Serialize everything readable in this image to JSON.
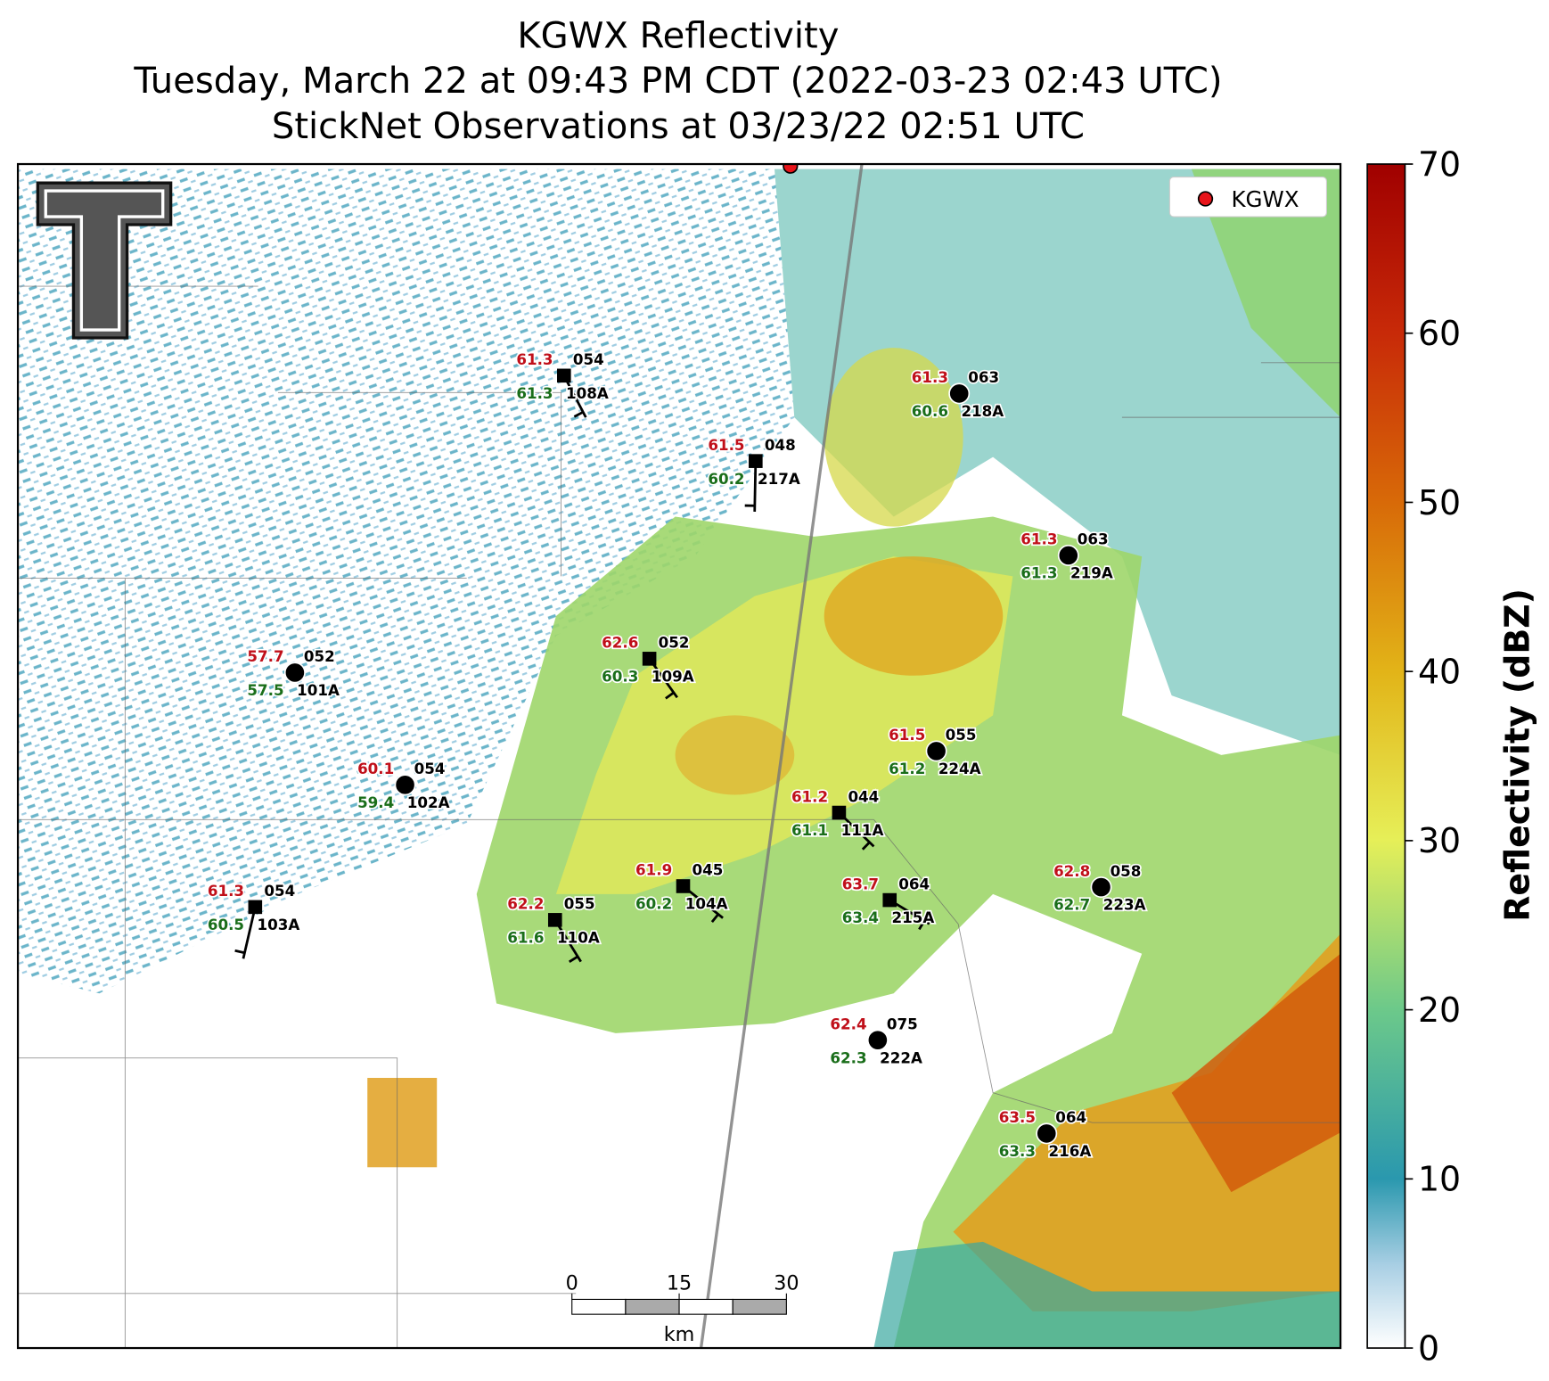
{
  "title": [
    "KGWX Reflectivity",
    "Tuesday, March 22 at 09:43 PM CDT (2022-03-23 02:43 UTC)",
    "StickNet Observations at 03/23/22 02:51 UTC"
  ],
  "legend": {
    "label": "KGWX"
  },
  "colorbar": {
    "label": "Reflectivity (dBZ)",
    "lim": [
      0,
      70
    ],
    "ticks": [
      0,
      10,
      20,
      30,
      40,
      50,
      60,
      70
    ]
  },
  "scale_bar": {
    "ticks": [
      0,
      15,
      30
    ],
    "unit": "km"
  },
  "stations": [
    {
      "id": "108A",
      "temperature": 61.3,
      "dewpoint": 61.3,
      "code": "054"
    },
    {
      "id": "217A",
      "temperature": 61.5,
      "dewpoint": 60.2,
      "code": "048"
    },
    {
      "id": "218A",
      "temperature": 61.3,
      "dewpoint": 60.6,
      "code": "063"
    },
    {
      "id": "219A",
      "temperature": 61.3,
      "dewpoint": 61.3,
      "code": "063"
    },
    {
      "id": "109A",
      "temperature": 62.6,
      "dewpoint": 60.3,
      "code": "052"
    },
    {
      "id": "101A",
      "temperature": 57.7,
      "dewpoint": 57.5,
      "code": "052"
    },
    {
      "id": "224A",
      "temperature": 61.5,
      "dewpoint": 61.2,
      "code": "055"
    },
    {
      "id": "102A",
      "temperature": 60.1,
      "dewpoint": 59.4,
      "code": "054"
    },
    {
      "id": "111A",
      "temperature": 61.2,
      "dewpoint": 61.1,
      "code": "044"
    },
    {
      "id": "104A",
      "temperature": 61.9,
      "dewpoint": 60.2,
      "code": "045"
    },
    {
      "id": "223A",
      "temperature": 62.8,
      "dewpoint": 62.7,
      "code": "058"
    },
    {
      "id": "215A",
      "temperature": 63.7,
      "dewpoint": 63.4,
      "code": "064"
    },
    {
      "id": "103A",
      "temperature": 61.3,
      "dewpoint": 60.5,
      "code": "054"
    },
    {
      "id": "110A",
      "temperature": 62.2,
      "dewpoint": 61.6,
      "code": "055"
    },
    {
      "id": "222A",
      "temperature": 62.4,
      "dewpoint": 62.3,
      "code": "075"
    },
    {
      "id": "216A",
      "temperature": 63.5,
      "dewpoint": 63.3,
      "code": "064"
    }
  ]
}
